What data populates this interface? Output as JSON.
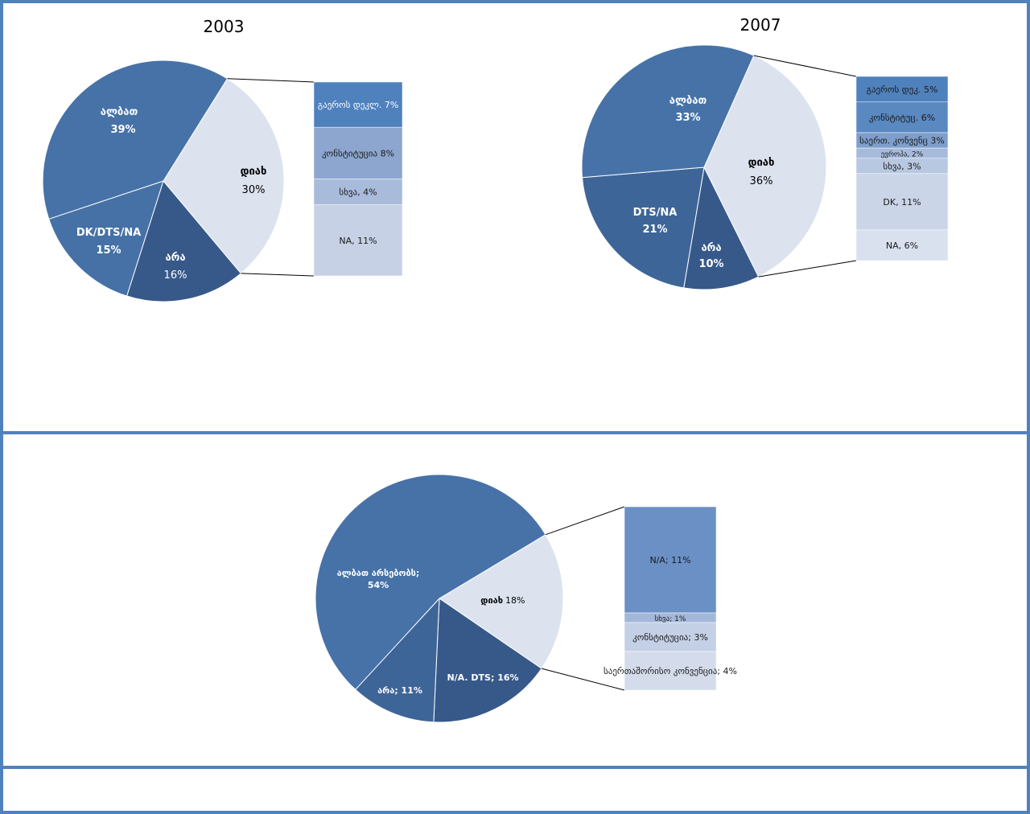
{
  "chart_data": [
    {
      "type": "pie",
      "title": "2003",
      "slices": [
        {
          "label": "ალბათ",
          "pct_text": "39%",
          "value": 39,
          "color": "#4672A8"
        },
        {
          "label": "დიახ",
          "pct_text": "30%",
          "value": 30,
          "color": "#DCE3EF"
        },
        {
          "label": "არა",
          "pct_text": "16%",
          "value": 16,
          "color": "#37598A"
        },
        {
          "label": "DK/DTS/NA",
          "pct_text": "15%",
          "value": 15,
          "color": "#4571A6"
        }
      ],
      "breakdown_of": "დიახ",
      "breakdown": [
        {
          "label": "გაეროს დეკლ. 7%",
          "value": 7,
          "color": "#4F81BD"
        },
        {
          "label": "კონსტიტუცია 8%",
          "value": 8,
          "color": "#8CA6CF"
        },
        {
          "label": "სხვა,  4%",
          "value": 4,
          "color": "#A9BBDA"
        },
        {
          "label": "NA, 11%",
          "value": 11,
          "color": "#C6D1E5"
        }
      ]
    },
    {
      "type": "pie",
      "title": "2007",
      "slices": [
        {
          "label": "ალბათ",
          "pct_text": "33%",
          "value": 33,
          "color": "#4672A8"
        },
        {
          "label": "დიახ",
          "pct_text": "36%",
          "value": 36,
          "color": "#DCE3EF"
        },
        {
          "label": "არა",
          "pct_text": "10%",
          "value": 10,
          "color": "#37598A"
        },
        {
          "label": "DTS/NA",
          "pct_text": "21%",
          "value": 21,
          "color": "#3E6598"
        }
      ],
      "breakdown_of": "დიახ",
      "breakdown": [
        {
          "label": "გაეროს დეკ. 5%",
          "value": 5,
          "color": "#4F81BD"
        },
        {
          "label": "კონსტიტუც. 6%",
          "value": 6,
          "color": "#5A89C2"
        },
        {
          "label": "საერთ. კონვენც 3%",
          "value": 3,
          "color": "#7E9ECB"
        },
        {
          "label": "ევროპა, 2%",
          "value": 2,
          "color": "#A6BBDB"
        },
        {
          "label": "სხვა, 3%",
          "value": 3,
          "color": "#B9C8E1"
        },
        {
          "label": "DK, 11%",
          "value": 11,
          "color": "#CBD5E8"
        },
        {
          "label": "NA, 6%",
          "value": 6,
          "color": "#D9E0EE"
        }
      ]
    },
    {
      "type": "pie",
      "title": "",
      "slices": [
        {
          "label": "ალბათ არსებობს;",
          "pct_text": "54%",
          "value": 54,
          "color": "#4672A8"
        },
        {
          "label": "დიახ",
          "pct_text": "18%",
          "value": 18,
          "color": "#DCE3EF"
        },
        {
          "label": "N/A. DTS; 16%",
          "pct_text": "",
          "value": 16,
          "color": "#37598A"
        },
        {
          "label": "არა; 11%",
          "pct_text": "",
          "value": 11,
          "color": "#3E6598"
        }
      ],
      "breakdown_of": "დიახ",
      "breakdown": [
        {
          "label": "N/A; 11%",
          "value": 11,
          "color": "#6A90C6"
        },
        {
          "label": "სხვა; 1%",
          "value": 1,
          "color": "#A3B8D9"
        },
        {
          "label": "კონსტიტუცია; 3%",
          "value": 3,
          "color": "#C4D0E5"
        },
        {
          "label": "საერთაშორისო კონვენცია; 4%",
          "value": 4,
          "color": "#D4DCEB"
        }
      ]
    }
  ]
}
